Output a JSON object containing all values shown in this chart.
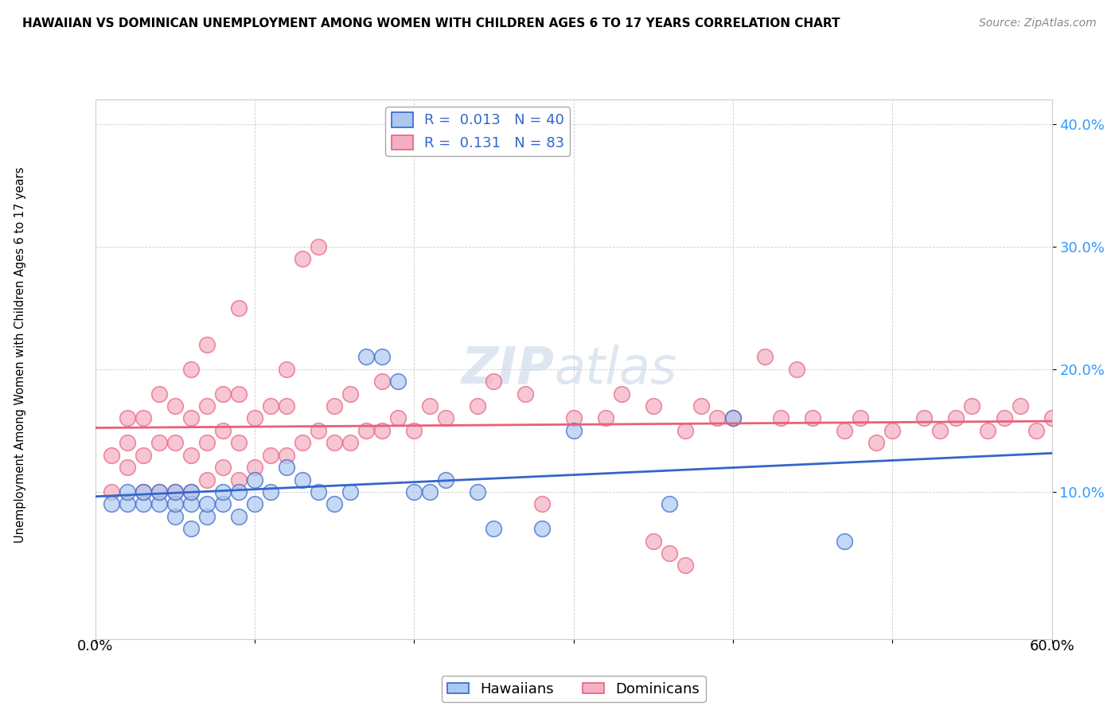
{
  "title": "HAWAIIAN VS DOMINICAN UNEMPLOYMENT AMONG WOMEN WITH CHILDREN AGES 6 TO 17 YEARS CORRELATION CHART",
  "source": "Source: ZipAtlas.com",
  "ylabel": "Unemployment Among Women with Children Ages 6 to 17 years",
  "xlim": [
    0.0,
    0.6
  ],
  "ylim": [
    -0.02,
    0.42
  ],
  "legend_hawaiian_r": "R = ",
  "legend_hawaiian_rv": "0.013",
  "legend_hawaiian_n": "  N = ",
  "legend_hawaiian_nv": "40",
  "legend_dominican_r": "R = ",
  "legend_dominican_rv": "0.131",
  "legend_dominican_n": "  N = ",
  "legend_dominican_nv": "83",
  "hawaiian_color": "#adc8f0",
  "dominican_color": "#f4afc4",
  "hawaiian_line_color": "#3366cc",
  "dominican_line_color": "#e8607a",
  "hawaiian_scatter_x": [
    0.01,
    0.02,
    0.02,
    0.03,
    0.03,
    0.04,
    0.04,
    0.05,
    0.05,
    0.05,
    0.06,
    0.06,
    0.06,
    0.07,
    0.07,
    0.08,
    0.08,
    0.09,
    0.09,
    0.1,
    0.1,
    0.11,
    0.12,
    0.13,
    0.14,
    0.15,
    0.16,
    0.17,
    0.18,
    0.19,
    0.2,
    0.21,
    0.22,
    0.24,
    0.25,
    0.28,
    0.3,
    0.36,
    0.4,
    0.47
  ],
  "hawaiian_scatter_y": [
    0.09,
    0.09,
    0.1,
    0.09,
    0.1,
    0.09,
    0.1,
    0.08,
    0.09,
    0.1,
    0.07,
    0.09,
    0.1,
    0.08,
    0.09,
    0.09,
    0.1,
    0.08,
    0.1,
    0.09,
    0.11,
    0.1,
    0.12,
    0.11,
    0.1,
    0.09,
    0.1,
    0.21,
    0.21,
    0.19,
    0.1,
    0.1,
    0.11,
    0.1,
    0.07,
    0.07,
    0.15,
    0.09,
    0.16,
    0.06
  ],
  "dominican_scatter_x": [
    0.01,
    0.01,
    0.02,
    0.02,
    0.02,
    0.03,
    0.03,
    0.03,
    0.04,
    0.04,
    0.04,
    0.05,
    0.05,
    0.05,
    0.06,
    0.06,
    0.06,
    0.06,
    0.07,
    0.07,
    0.07,
    0.07,
    0.08,
    0.08,
    0.08,
    0.09,
    0.09,
    0.09,
    0.09,
    0.1,
    0.1,
    0.11,
    0.11,
    0.12,
    0.12,
    0.12,
    0.13,
    0.13,
    0.14,
    0.14,
    0.15,
    0.15,
    0.16,
    0.16,
    0.17,
    0.18,
    0.18,
    0.19,
    0.2,
    0.21,
    0.22,
    0.24,
    0.25,
    0.27,
    0.28,
    0.3,
    0.32,
    0.33,
    0.35,
    0.37,
    0.38,
    0.39,
    0.4,
    0.42,
    0.43,
    0.44,
    0.45,
    0.47,
    0.48,
    0.49,
    0.5,
    0.52,
    0.53,
    0.54,
    0.55,
    0.56,
    0.57,
    0.58,
    0.59,
    0.6,
    0.35,
    0.36,
    0.37
  ],
  "dominican_scatter_y": [
    0.1,
    0.13,
    0.12,
    0.14,
    0.16,
    0.1,
    0.13,
    0.16,
    0.1,
    0.14,
    0.18,
    0.1,
    0.14,
    0.17,
    0.1,
    0.13,
    0.16,
    0.2,
    0.11,
    0.14,
    0.17,
    0.22,
    0.12,
    0.15,
    0.18,
    0.11,
    0.14,
    0.18,
    0.25,
    0.12,
    0.16,
    0.13,
    0.17,
    0.13,
    0.17,
    0.2,
    0.14,
    0.29,
    0.15,
    0.3,
    0.14,
    0.17,
    0.14,
    0.18,
    0.15,
    0.15,
    0.19,
    0.16,
    0.15,
    0.17,
    0.16,
    0.17,
    0.19,
    0.18,
    0.09,
    0.16,
    0.16,
    0.18,
    0.17,
    0.15,
    0.17,
    0.16,
    0.16,
    0.21,
    0.16,
    0.2,
    0.16,
    0.15,
    0.16,
    0.14,
    0.15,
    0.16,
    0.15,
    0.16,
    0.17,
    0.15,
    0.16,
    0.17,
    0.15,
    0.16,
    0.06,
    0.05,
    0.04
  ]
}
